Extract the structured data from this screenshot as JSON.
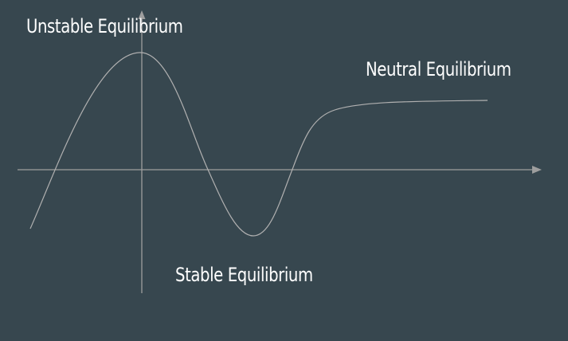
{
  "colors": {
    "background": "#37474f",
    "axis": "#9e9e9e",
    "curve": "#b0b0b0",
    "text": "#ffffff"
  },
  "labels": {
    "unstable": "Unstable Equilibrium",
    "neutral": "Neutral Equilibrium",
    "stable": "Stable Equilibrium"
  }
}
